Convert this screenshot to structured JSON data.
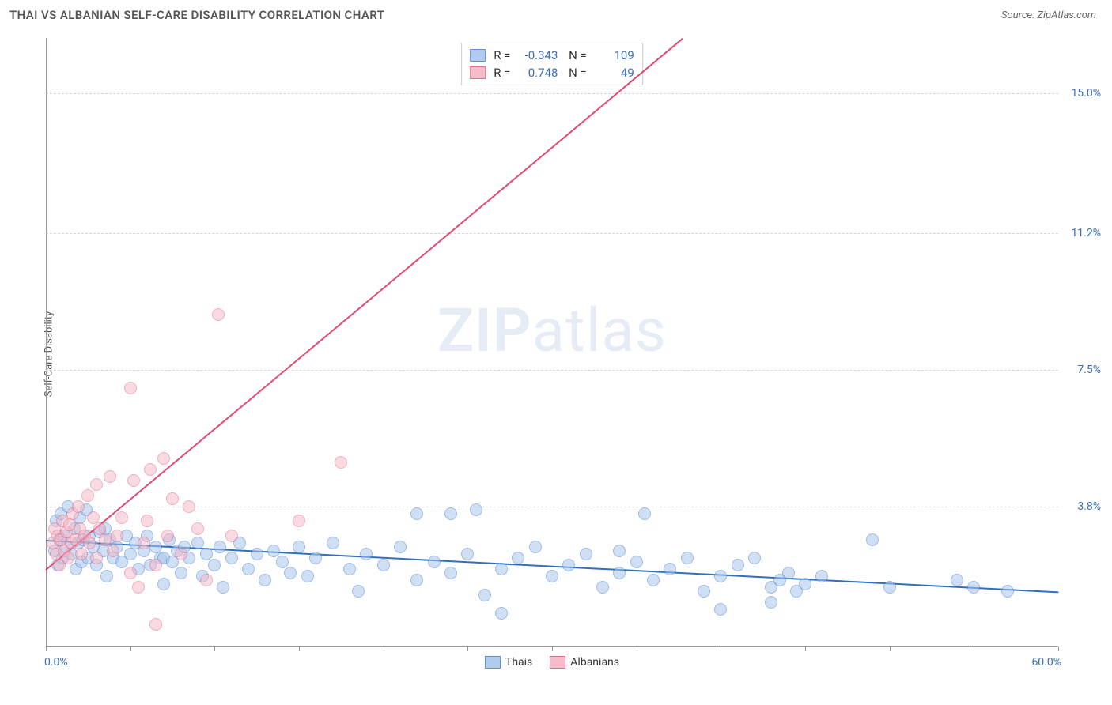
{
  "title": "THAI VS ALBANIAN SELF-CARE DISABILITY CORRELATION CHART",
  "source_label": "Source: ZipAtlas.com",
  "watermark": {
    "bold": "ZIP",
    "light": "atlas"
  },
  "ylabel": "Self-Care Disability",
  "chart": {
    "type": "scatter",
    "xlim": [
      0,
      60
    ],
    "ylim": [
      0,
      16.5
    ],
    "x_tick_step": 5,
    "xmin_label": "0.0%",
    "xmax_label": "60.0%",
    "y_ticks": [
      {
        "v": 3.8,
        "label": "3.8%"
      },
      {
        "v": 7.5,
        "label": "7.5%"
      },
      {
        "v": 11.2,
        "label": "11.2%"
      },
      {
        "v": 15.0,
        "label": "15.0%"
      }
    ],
    "background_color": "#ffffff",
    "grid_color": "#d6d6d6",
    "axis_color": "#999999",
    "series": [
      {
        "name": "Thais",
        "marker_fill": "#a8c6ec",
        "marker_stroke": "#4f86cf",
        "marker_fill_opacity": 0.55,
        "marker_radius": 8,
        "trend_color": "#2f6fbf",
        "trend_y_at_xmin": 2.9,
        "trend_y_at_xmax": 1.5,
        "R": "-0.343",
        "N": "109",
        "points": [
          [
            0.5,
            2.6
          ],
          [
            0.6,
            3.4
          ],
          [
            0.7,
            2.2
          ],
          [
            0.8,
            2.9
          ],
          [
            0.9,
            3.6
          ],
          [
            1.0,
            2.4
          ],
          [
            1.1,
            3.0
          ],
          [
            1.3,
            3.8
          ],
          [
            1.2,
            2.7
          ],
          [
            1.5,
            2.5
          ],
          [
            1.7,
            3.2
          ],
          [
            1.8,
            2.1
          ],
          [
            1.9,
            2.8
          ],
          [
            2.0,
            3.5
          ],
          [
            2.1,
            2.3
          ],
          [
            2.2,
            2.9
          ],
          [
            2.4,
            3.7
          ],
          [
            2.5,
            2.4
          ],
          [
            2.6,
            3.0
          ],
          [
            2.8,
            2.7
          ],
          [
            3.0,
            2.2
          ],
          [
            3.2,
            3.1
          ],
          [
            3.4,
            2.6
          ],
          [
            3.5,
            3.2
          ],
          [
            3.6,
            1.9
          ],
          [
            3.8,
            2.9
          ],
          [
            4.0,
            2.4
          ],
          [
            4.2,
            2.7
          ],
          [
            4.5,
            2.3
          ],
          [
            4.8,
            3.0
          ],
          [
            5.0,
            2.5
          ],
          [
            5.3,
            2.8
          ],
          [
            5.5,
            2.1
          ],
          [
            5.8,
            2.6
          ],
          [
            6.0,
            3.0
          ],
          [
            6.2,
            2.2
          ],
          [
            6.5,
            2.7
          ],
          [
            6.8,
            2.4
          ],
          [
            7.0,
            1.7
          ],
          [
            7.0,
            2.4
          ],
          [
            7.3,
            2.9
          ],
          [
            7.5,
            2.3
          ],
          [
            7.8,
            2.6
          ],
          [
            8.0,
            2.0
          ],
          [
            8.2,
            2.7
          ],
          [
            8.5,
            2.4
          ],
          [
            9.0,
            2.8
          ],
          [
            9.3,
            1.9
          ],
          [
            9.5,
            2.5
          ],
          [
            10.0,
            2.2
          ],
          [
            10.3,
            2.7
          ],
          [
            10.5,
            1.6
          ],
          [
            11.0,
            2.4
          ],
          [
            11.5,
            2.8
          ],
          [
            12.0,
            2.1
          ],
          [
            12.5,
            2.5
          ],
          [
            13.0,
            1.8
          ],
          [
            13.5,
            2.6
          ],
          [
            14.0,
            2.3
          ],
          [
            14.5,
            2.0
          ],
          [
            15.0,
            2.7
          ],
          [
            15.5,
            1.9
          ],
          [
            16.0,
            2.4
          ],
          [
            17.0,
            2.8
          ],
          [
            18.0,
            2.1
          ],
          [
            18.5,
            1.5
          ],
          [
            19.0,
            2.5
          ],
          [
            20.0,
            2.2
          ],
          [
            21.0,
            2.7
          ],
          [
            22.0,
            1.8
          ],
          [
            22.0,
            3.6
          ],
          [
            23.0,
            2.3
          ],
          [
            24.0,
            3.6
          ],
          [
            24.0,
            2.0
          ],
          [
            25.0,
            2.5
          ],
          [
            25.5,
            3.7
          ],
          [
            26.0,
            1.4
          ],
          [
            27.0,
            2.1
          ],
          [
            27.0,
            0.9
          ],
          [
            28.0,
            2.4
          ],
          [
            29.0,
            2.7
          ],
          [
            30.0,
            1.9
          ],
          [
            31.0,
            2.2
          ],
          [
            32.0,
            2.5
          ],
          [
            33.0,
            1.6
          ],
          [
            34.0,
            2.0
          ],
          [
            34.0,
            2.6
          ],
          [
            35.0,
            2.3
          ],
          [
            35.5,
            3.6
          ],
          [
            36.0,
            1.8
          ],
          [
            37.0,
            2.1
          ],
          [
            38.0,
            2.4
          ],
          [
            39.0,
            1.5
          ],
          [
            40.0,
            1.9
          ],
          [
            40.0,
            1.0
          ],
          [
            41.0,
            2.2
          ],
          [
            42.0,
            2.4
          ],
          [
            43.0,
            1.2
          ],
          [
            43.0,
            1.6
          ],
          [
            43.5,
            1.8
          ],
          [
            44.0,
            2.0
          ],
          [
            44.5,
            1.5
          ],
          [
            45.0,
            1.7
          ],
          [
            46.0,
            1.9
          ],
          [
            49.0,
            2.9
          ],
          [
            50.0,
            1.6
          ],
          [
            54.0,
            1.8
          ],
          [
            55.0,
            1.6
          ],
          [
            57.0,
            1.5
          ]
        ]
      },
      {
        "name": "Albanians",
        "marker_fill": "#f4b6c5",
        "marker_stroke": "#e26183",
        "marker_fill_opacity": 0.5,
        "marker_radius": 8,
        "trend_color": "#e24a72",
        "trend_y_at_xmin": 2.1,
        "trend_y_at_xmax": 25.0,
        "R": "0.748",
        "N": "49",
        "points": [
          [
            0.4,
            2.8
          ],
          [
            0.5,
            3.2
          ],
          [
            0.6,
            2.5
          ],
          [
            0.7,
            3.0
          ],
          [
            0.8,
            2.2
          ],
          [
            0.9,
            2.9
          ],
          [
            1.0,
            3.4
          ],
          [
            1.1,
            2.6
          ],
          [
            1.2,
            3.1
          ],
          [
            1.3,
            2.4
          ],
          [
            1.4,
            3.3
          ],
          [
            1.5,
            2.8
          ],
          [
            1.6,
            3.6
          ],
          [
            1.8,
            2.9
          ],
          [
            1.9,
            3.8
          ],
          [
            2.0,
            3.2
          ],
          [
            2.1,
            2.5
          ],
          [
            2.3,
            3.0
          ],
          [
            2.5,
            4.1
          ],
          [
            2.6,
            2.8
          ],
          [
            2.8,
            3.5
          ],
          [
            3.0,
            4.4
          ],
          [
            3.0,
            2.4
          ],
          [
            3.2,
            3.2
          ],
          [
            3.5,
            2.9
          ],
          [
            3.8,
            4.6
          ],
          [
            4.0,
            2.6
          ],
          [
            4.2,
            3.0
          ],
          [
            4.5,
            3.5
          ],
          [
            5.0,
            2.0
          ],
          [
            5.0,
            7.0
          ],
          [
            5.2,
            4.5
          ],
          [
            5.5,
            1.6
          ],
          [
            5.8,
            2.8
          ],
          [
            6.0,
            3.4
          ],
          [
            6.2,
            4.8
          ],
          [
            6.5,
            2.2
          ],
          [
            6.5,
            0.6
          ],
          [
            7.0,
            5.1
          ],
          [
            7.2,
            3.0
          ],
          [
            7.5,
            4.0
          ],
          [
            8.0,
            2.5
          ],
          [
            8.5,
            3.8
          ],
          [
            9.0,
            3.2
          ],
          [
            9.5,
            1.8
          ],
          [
            10.2,
            9.0
          ],
          [
            11.0,
            3.0
          ],
          [
            15.0,
            3.4
          ],
          [
            17.5,
            5.0
          ]
        ]
      }
    ]
  }
}
